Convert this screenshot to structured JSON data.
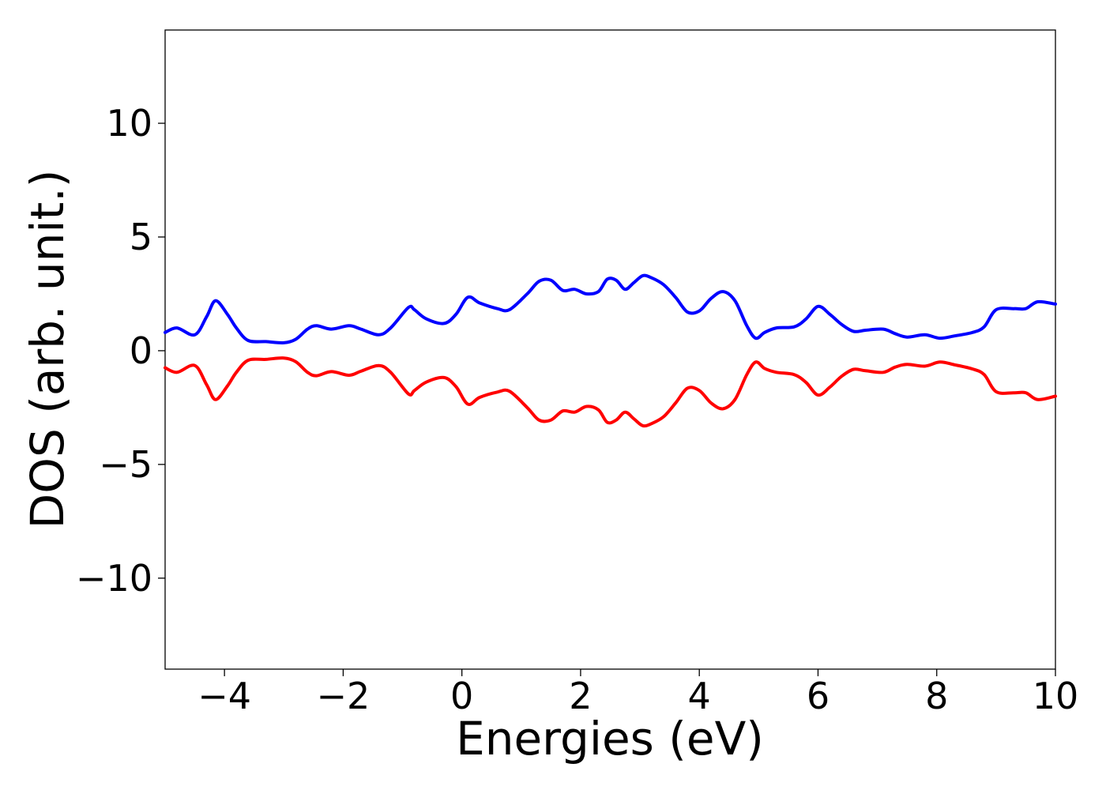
{
  "chart_data": {
    "type": "line",
    "title": "",
    "xlabel": "Energies (eV)",
    "ylabel": "DOS (arb. unit.)",
    "xlim": [
      -5,
      10
    ],
    "ylim": [
      -14,
      14.1
    ],
    "grid": false,
    "legend": "none",
    "x_ticks": [
      -4,
      -2,
      0,
      2,
      4,
      6,
      8,
      10
    ],
    "x_tick_labels": [
      "−4",
      "−2",
      "0",
      "2",
      "4",
      "6",
      "8",
      "10"
    ],
    "y_ticks": [
      -10,
      -5,
      0,
      5,
      10
    ],
    "y_tick_labels": [
      "−10",
      "−5",
      "0",
      "5",
      "10"
    ],
    "series": [
      {
        "color": "#0000ff",
        "x": [
          -5.0,
          -4.8,
          -4.5,
          -4.3,
          -4.15,
          -3.95,
          -3.8,
          -3.6,
          -3.3,
          -3.0,
          -2.8,
          -2.6,
          -2.45,
          -2.2,
          -1.9,
          -1.7,
          -1.4,
          -1.2,
          -0.9,
          -0.8,
          -0.6,
          -0.3,
          -0.1,
          0.1,
          0.3,
          0.6,
          0.8,
          1.1,
          1.3,
          1.5,
          1.7,
          1.9,
          2.1,
          2.3,
          2.45,
          2.6,
          2.75,
          2.9,
          3.05,
          3.2,
          3.4,
          3.6,
          3.8,
          4.0,
          4.2,
          4.4,
          4.6,
          4.8,
          4.95,
          5.1,
          5.3,
          5.6,
          5.8,
          6.0,
          6.2,
          6.4,
          6.6,
          6.8,
          7.1,
          7.3,
          7.5,
          7.8,
          8.05,
          8.3,
          8.6,
          8.8,
          9.0,
          9.3,
          9.5,
          9.7,
          10.0
        ],
        "y": [
          0.8,
          1.0,
          0.7,
          1.5,
          2.2,
          1.6,
          1.0,
          0.45,
          0.4,
          0.35,
          0.5,
          0.95,
          1.1,
          0.95,
          1.1,
          0.95,
          0.7,
          1.0,
          1.9,
          1.8,
          1.4,
          1.2,
          1.6,
          2.35,
          2.1,
          1.85,
          1.8,
          2.5,
          3.05,
          3.1,
          2.65,
          2.7,
          2.5,
          2.6,
          3.15,
          3.1,
          2.7,
          3.0,
          3.3,
          3.2,
          2.9,
          2.35,
          1.7,
          1.75,
          2.3,
          2.6,
          2.2,
          1.1,
          0.55,
          0.8,
          1.0,
          1.05,
          1.4,
          1.95,
          1.6,
          1.15,
          0.85,
          0.9,
          0.95,
          0.75,
          0.6,
          0.7,
          0.55,
          0.65,
          0.8,
          1.05,
          1.8,
          1.85,
          1.85,
          2.15,
          2.05
        ]
      },
      {
        "color": "#ff0000",
        "x": [
          -5.0,
          -4.8,
          -4.5,
          -4.3,
          -4.15,
          -3.95,
          -3.8,
          -3.6,
          -3.3,
          -3.0,
          -2.8,
          -2.6,
          -2.45,
          -2.2,
          -1.9,
          -1.7,
          -1.4,
          -1.2,
          -0.9,
          -0.8,
          -0.6,
          -0.3,
          -0.1,
          0.1,
          0.3,
          0.6,
          0.8,
          1.1,
          1.3,
          1.5,
          1.7,
          1.9,
          2.1,
          2.3,
          2.45,
          2.6,
          2.75,
          2.9,
          3.05,
          3.2,
          3.4,
          3.6,
          3.8,
          4.0,
          4.2,
          4.4,
          4.6,
          4.8,
          4.95,
          5.1,
          5.3,
          5.6,
          5.8,
          6.0,
          6.2,
          6.4,
          6.6,
          6.8,
          7.1,
          7.3,
          7.5,
          7.8,
          8.05,
          8.3,
          8.6,
          8.8,
          9.0,
          9.3,
          9.5,
          9.7,
          10.0
        ],
        "y": [
          -0.75,
          -0.95,
          -0.65,
          -1.5,
          -2.15,
          -1.55,
          -0.95,
          -0.42,
          -0.38,
          -0.32,
          -0.48,
          -0.95,
          -1.1,
          -0.92,
          -1.08,
          -0.9,
          -0.65,
          -0.95,
          -1.9,
          -1.75,
          -1.38,
          -1.18,
          -1.58,
          -2.35,
          -2.05,
          -1.82,
          -1.78,
          -2.5,
          -3.05,
          -3.05,
          -2.65,
          -2.7,
          -2.45,
          -2.6,
          -3.15,
          -3.05,
          -2.7,
          -3.0,
          -3.3,
          -3.2,
          -2.9,
          -2.3,
          -1.65,
          -1.75,
          -2.3,
          -2.55,
          -2.15,
          -1.05,
          -0.5,
          -0.78,
          -0.95,
          -1.05,
          -1.4,
          -1.95,
          -1.6,
          -1.12,
          -0.82,
          -0.88,
          -0.95,
          -0.72,
          -0.6,
          -0.68,
          -0.5,
          -0.62,
          -0.8,
          -1.05,
          -1.8,
          -1.85,
          -1.85,
          -2.15,
          -2.0
        ]
      }
    ]
  }
}
